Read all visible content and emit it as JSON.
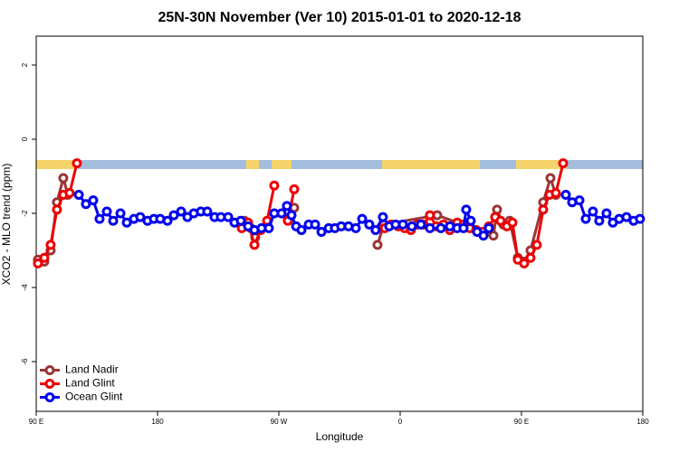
{
  "chart_data": {
    "type": "line",
    "title": "25N-30N November (Ver 10)   2015-01-01 to 2020-12-18",
    "xlabel": "Longitude",
    "ylabel": "XCO2 - MLO trend (ppm)",
    "xlim": [
      90,
      540
    ],
    "xticks": [
      {
        "value": 90,
        "label": "90 E"
      },
      180,
      {
        "value": 270,
        "label": "90 W"
      },
      {
        "value": 360,
        "label": "0"
      },
      {
        "value": 450,
        "label": "90 E"
      },
      {
        "value": 540,
        "label": "180"
      }
    ],
    "ylim": [
      -7.34,
      2.78
    ],
    "yticks": [
      -6,
      -4,
      -2,
      0,
      2
    ],
    "legend": "bottom-left",
    "series": [
      {
        "name": "Land Nadir",
        "color": "#9b3535",
        "x": [
          91.3,
          96.0,
          100.7,
          105.4,
          110.1,
          113.5,
          null,
          244.5,
          249.2,
          252.5,
          null,
          276.7,
          281.4,
          null,
          343.2,
          347.9,
          387.5,
          429.2,
          431.9,
          436.6,
          441.3,
          447.3,
          452.0,
          456.7,
          466.1,
          471.5,
          475.5
        ],
        "values": [
          -3.25,
          -3.3,
          -3.0,
          -1.7,
          -1.05,
          -1.5,
          null,
          -2.2,
          -2.4,
          -2.65,
          null,
          -2.15,
          -1.85,
          null,
          -2.85,
          -2.3,
          -2.05,
          -2.6,
          -1.9,
          -2.3,
          -2.2,
          -3.2,
          -3.3,
          -3.0,
          -1.7,
          -1.05,
          -1.5
        ]
      },
      {
        "name": "Land Glint",
        "color": "#ee0000",
        "x": [
          91.3,
          96.0,
          100.7,
          105.4,
          110.1,
          114.8,
          120.2,
          null,
          242.5,
          247.2,
          251.9,
          256.6,
          261.3,
          266.6,
          null,
          276.7,
          281.4,
          null,
          348.6,
          353.3,
          358.6,
          363.3,
          368.0,
          372.7,
          377.4,
          382.1,
          386.8,
          392.2,
          396.9,
          402.3,
          407.0,
          411.7,
          416.4,
          421.1,
          425.8,
          430.5,
          434.5,
          439.2,
          443.3,
          447.3,
          452.0,
          456.7,
          461.4,
          466.1,
          470.8,
          475.5,
          480.9
        ],
        "values": [
          -3.35,
          -3.2,
          -2.85,
          -1.9,
          -1.5,
          -1.45,
          -0.65,
          null,
          -2.4,
          -2.25,
          -2.85,
          -2.45,
          -2.2,
          -1.25,
          null,
          -2.2,
          -1.35,
          null,
          -2.4,
          -2.3,
          -2.35,
          -2.4,
          -2.45,
          -2.3,
          -2.3,
          -2.05,
          -2.35,
          -2.3,
          -2.45,
          -2.25,
          -2.3,
          -2.4,
          -2.45,
          -2.5,
          -2.35,
          -2.1,
          -2.2,
          -2.35,
          -2.25,
          -3.25,
          -3.35,
          -3.2,
          -2.85,
          -1.9,
          -1.5,
          -1.45,
          -0.65
        ]
      },
      {
        "name": "Ocean Glint",
        "color": "#0000ee",
        "x": [
          121.6,
          126.9,
          132.3,
          137.0,
          142.4,
          147.1,
          152.5,
          157.2,
          162.5,
          167.2,
          172.6,
          177.3,
          182.0,
          187.4,
          192.1,
          197.5,
          202.2,
          206.9,
          212.2,
          216.9,
          222.3,
          227.0,
          232.4,
          237.1,
          241.8,
          247.2,
          251.9,
          257.2,
          262.6,
          266.6,
          272.0,
          276.0,
          279.4,
          282.8,
          286.8,
          292.2,
          296.9,
          301.6,
          307.0,
          311.6,
          316.3,
          321.7,
          327.1,
          331.8,
          337.1,
          341.8,
          347.2,
          351.9,
          356.6,
          362.0,
          368.7,
          375.4,
          382.1,
          390.2,
          396.9,
          402.3,
          407.0,
          409.0,
          412.4,
          417.1,
          421.8,
          425.8,
          null,
          482.9,
          487.6,
          493.0,
          497.7,
          503.0,
          507.7,
          513.1,
          517.8,
          522.5,
          527.9,
          533.2,
          537.9
        ],
        "values": [
          -1.5,
          -1.75,
          -1.65,
          -2.15,
          -1.95,
          -2.2,
          -2.0,
          -2.25,
          -2.15,
          -2.1,
          -2.2,
          -2.15,
          -2.15,
          -2.2,
          -2.05,
          -1.95,
          -2.1,
          -2.0,
          -1.95,
          -1.95,
          -2.1,
          -2.1,
          -2.1,
          -2.25,
          -2.2,
          -2.35,
          -2.45,
          -2.4,
          -2.4,
          -2.0,
          -2.0,
          -1.8,
          -2.05,
          -2.35,
          -2.45,
          -2.3,
          -2.3,
          -2.5,
          -2.4,
          -2.4,
          -2.35,
          -2.35,
          -2.4,
          -2.15,
          -2.3,
          -2.45,
          -2.1,
          -2.35,
          -2.3,
          -2.3,
          -2.35,
          -2.3,
          -2.4,
          -2.4,
          -2.35,
          -2.4,
          -2.4,
          -1.9,
          -2.2,
          -2.5,
          -2.6,
          -2.4,
          null,
          -1.5,
          -1.7,
          -1.65,
          -2.15,
          -1.95,
          -2.2,
          -2.0,
          -2.25,
          -2.15,
          -2.1,
          -2.2,
          -2.15
        ]
      }
    ]
  }
}
